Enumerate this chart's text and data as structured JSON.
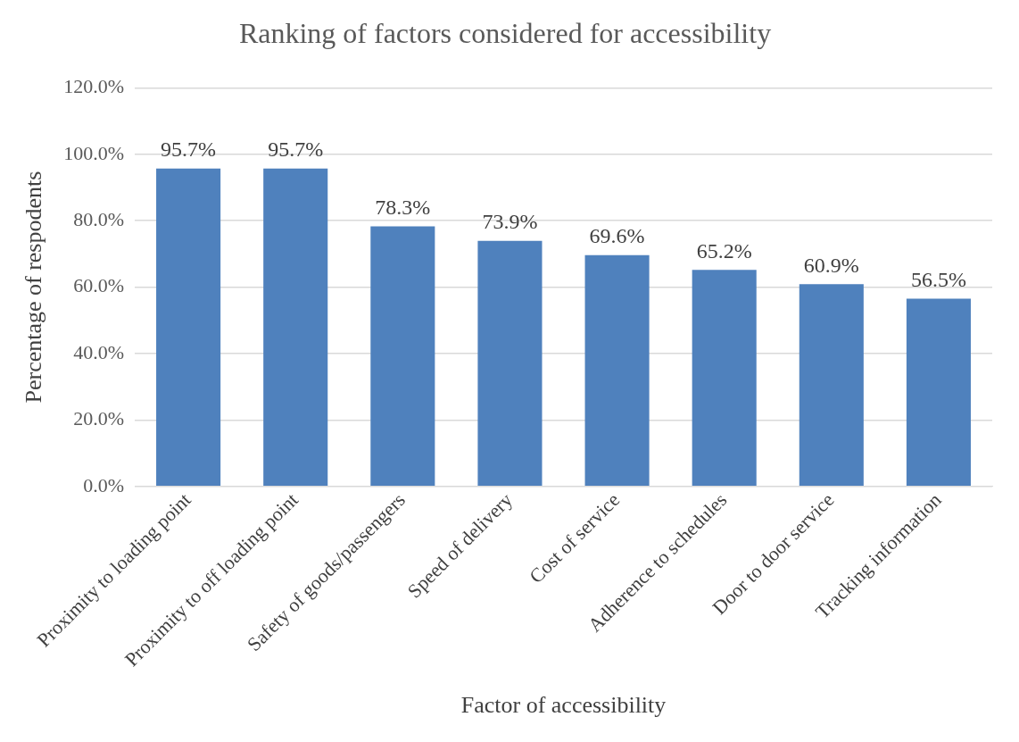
{
  "chart_data": {
    "type": "bar",
    "title": "Ranking of factors considered for accessibility",
    "xlabel": "Factor of accessibility",
    "ylabel": "Percentage of respodents",
    "categories": [
      "Proximity to loading point",
      "Proximity to off loading point",
      "Safety of goods/passengers",
      "Speed of delivery",
      "Cost of service",
      "Adherence to schedules",
      "Door to door service",
      "Tracking information"
    ],
    "values": [
      95.7,
      95.7,
      78.3,
      73.9,
      69.6,
      65.2,
      60.9,
      56.5
    ],
    "value_labels": [
      "95.7%",
      "95.7%",
      "78.3%",
      "73.9%",
      "69.6%",
      "65.2%",
      "60.9%",
      "56.5%"
    ],
    "color": "#4f81bd",
    "ylim": [
      0,
      120
    ],
    "yticks": [
      {
        "value": 0,
        "label": "0.0%"
      },
      {
        "value": 20,
        "label": "20.0%"
      },
      {
        "value": 40,
        "label": "40.0%"
      },
      {
        "value": 60,
        "label": "60.0%"
      },
      {
        "value": 80,
        "label": "80.0%"
      },
      {
        "value": 100,
        "label": "100.0%"
      },
      {
        "value": 120,
        "label": "120.0%"
      }
    ],
    "grid": "y",
    "legend": false
  }
}
